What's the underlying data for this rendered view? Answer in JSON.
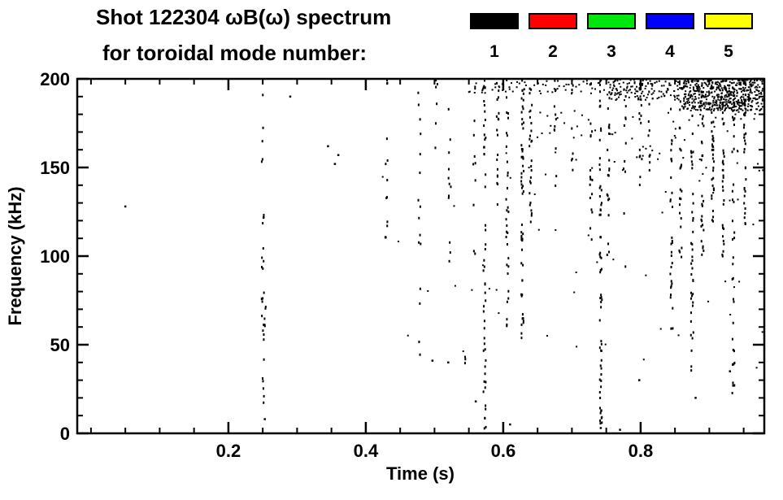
{
  "chart_data": {
    "type": "scatter",
    "title": "Shot 122304 ωB(ω) spectrum",
    "subtitle": "for toroidal mode number:",
    "xlabel": "Time (s)",
    "ylabel": "Frequency (kHz)",
    "xlim": [
      -0.02,
      0.98
    ],
    "ylim": [
      0,
      200
    ],
    "x_tick_values": [
      0.2,
      0.4,
      0.6,
      0.8
    ],
    "x_tick_labels": [
      "0.2",
      "0.4",
      "0.6",
      "0.8"
    ],
    "x_minor_step": 0.05,
    "y_tick_values": [
      0,
      50,
      100,
      150,
      200
    ],
    "y_tick_labels": [
      "0",
      "50",
      "100",
      "150",
      "200"
    ],
    "y_minor_step": 10,
    "grid": false,
    "frame_color": "#000000",
    "observed_point_color": "#000000",
    "legend": {
      "position": "top-right",
      "entries": [
        {
          "label": "1",
          "color": "#000000"
        },
        {
          "label": "2",
          "color": "#ff0000"
        },
        {
          "label": "3",
          "color": "#00e60c"
        },
        {
          "label": "4",
          "color": "#0000ff"
        },
        {
          "label": "5",
          "color": "#ffff00"
        }
      ]
    },
    "features": {
      "streaks_format": "vertical speckle streak: t (s), f range [min,max] (kHz), n points",
      "streaks": [
        {
          "t": 0.25,
          "f": [
            8,
            196
          ],
          "n": 28
        },
        {
          "t": 0.253,
          "f": [
            58,
            76
          ],
          "n": 6
        },
        {
          "t": 0.43,
          "f": [
            95,
            170
          ],
          "n": 10
        },
        {
          "t": 0.432,
          "f": [
            196,
            200
          ],
          "n": 3
        },
        {
          "t": 0.478,
          "f": [
            35,
            200
          ],
          "n": 16
        },
        {
          "t": 0.503,
          "f": [
            160,
            200
          ],
          "n": 6
        },
        {
          "t": 0.522,
          "f": [
            88,
            192
          ],
          "n": 12
        },
        {
          "t": 0.545,
          "f": [
            38,
            44
          ],
          "n": 3
        },
        {
          "t": 0.558,
          "f": [
            100,
            200
          ],
          "n": 10
        },
        {
          "t": 0.573,
          "f": [
            2,
            200
          ],
          "n": 50
        },
        {
          "t": 0.592,
          "f": [
            128,
            200
          ],
          "n": 18
        },
        {
          "t": 0.606,
          "f": [
            58,
            200
          ],
          "n": 32
        },
        {
          "t": 0.628,
          "f": [
            48,
            200
          ],
          "n": 55
        },
        {
          "t": 0.64,
          "f": [
            118,
            200
          ],
          "n": 25
        },
        {
          "t": 0.676,
          "f": [
            138,
            200
          ],
          "n": 12
        },
        {
          "t": 0.7,
          "f": [
            148,
            200
          ],
          "n": 8
        },
        {
          "t": 0.728,
          "f": [
            108,
            200
          ],
          "n": 18
        },
        {
          "t": 0.742,
          "f": [
            0,
            200
          ],
          "n": 62
        },
        {
          "t": 0.753,
          "f": [
            100,
            200
          ],
          "n": 20
        },
        {
          "t": 0.777,
          "f": [
            88,
            200
          ],
          "n": 12
        },
        {
          "t": 0.8,
          "f": [
            138,
            200
          ],
          "n": 15
        },
        {
          "t": 0.812,
          "f": [
            148,
            200
          ],
          "n": 10
        },
        {
          "t": 0.845,
          "f": [
            58,
            200
          ],
          "n": 30
        },
        {
          "t": 0.858,
          "f": [
            98,
            200
          ],
          "n": 25
        },
        {
          "t": 0.875,
          "f": [
            28,
            200
          ],
          "n": 42
        },
        {
          "t": 0.89,
          "f": [
            98,
            200
          ],
          "n": 30
        },
        {
          "t": 0.905,
          "f": [
            118,
            200
          ],
          "n": 35
        },
        {
          "t": 0.92,
          "f": [
            98,
            200
          ],
          "n": 32
        },
        {
          "t": 0.935,
          "f": [
            18,
            200
          ],
          "n": 40
        },
        {
          "t": 0.952,
          "f": [
            118,
            200
          ],
          "n": 35
        }
      ],
      "bands_format": "diffuse speckle band: t range (s), f range (kHz), n points",
      "bands": [
        {
          "t": [
            0.55,
            0.75
          ],
          "f": [
            191,
            200
          ],
          "n": 60
        },
        {
          "t": [
            0.75,
            0.86
          ],
          "f": [
            188,
            200
          ],
          "n": 130
        },
        {
          "t": [
            0.86,
            0.978
          ],
          "f": [
            182,
            200
          ],
          "n": 520
        },
        {
          "t": [
            0.6,
            0.978
          ],
          "f": [
            148,
            185
          ],
          "n": 70
        },
        {
          "t": [
            0.42,
            0.978
          ],
          "f": [
            25,
            148
          ],
          "n": 45
        }
      ],
      "points_format": "isolated specks [t (s), f (kHz)]",
      "points": [
        [
          0.05,
          128
        ],
        [
          0.355,
          152
        ],
        [
          0.36,
          157
        ],
        [
          0.345,
          162
        ],
        [
          0.29,
          190
        ],
        [
          0.497,
          41
        ],
        [
          0.52,
          40
        ],
        [
          0.77,
          2
        ],
        [
          0.798,
          30
        ],
        [
          0.56,
          18
        ],
        [
          0.253,
          8
        ],
        [
          0.61,
          5
        ],
        [
          0.742,
          3
        ],
        [
          0.88,
          20
        ],
        [
          0.93,
          35
        ]
      ]
    }
  }
}
